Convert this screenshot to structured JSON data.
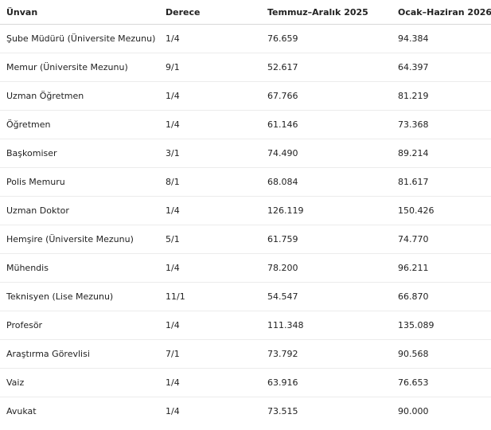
{
  "table": {
    "header": [
      "Ünvan",
      "Derece",
      "Temmuz–Aralık 2025",
      "Ocak–Haziran 2026"
    ],
    "rows": [
      [
        "Şube Müdürü (Üniversite Mezunu)",
        "1/4",
        "76.659",
        "94.384"
      ],
      [
        "Memur (Üniversite Mezunu)",
        "9/1",
        "52.617",
        "64.397"
      ],
      [
        "Uzman Öğretmen",
        "1/4",
        "67.766",
        "81.219"
      ],
      [
        "Öğretmen",
        "1/4",
        "61.146",
        "73.368"
      ],
      [
        "Başkomiser",
        "3/1",
        "74.490",
        "89.214"
      ],
      [
        "Polis Memuru",
        "8/1",
        "68.084",
        "81.617"
      ],
      [
        "Uzman Doktor",
        "1/4",
        "126.119",
        "150.426"
      ],
      [
        "Hemşire (Üniversite Mezunu)",
        "5/1",
        "61.759",
        "74.770"
      ],
      [
        "Mühendis",
        "1/4",
        "78.200",
        "96.211"
      ],
      [
        "Teknisyen (Lise Mezunu)",
        "11/1",
        "54.547",
        "66.870"
      ],
      [
        "Profesör",
        "1/4",
        "111.348",
        "135.089"
      ],
      [
        "Araştırma Görevlisi",
        "7/1",
        "73.792",
        "90.568"
      ],
      [
        "Vaiz",
        "1/4",
        "63.916",
        "76.653"
      ],
      [
        "Avukat",
        "1/4",
        "73.515",
        "90.000"
      ]
    ]
  }
}
